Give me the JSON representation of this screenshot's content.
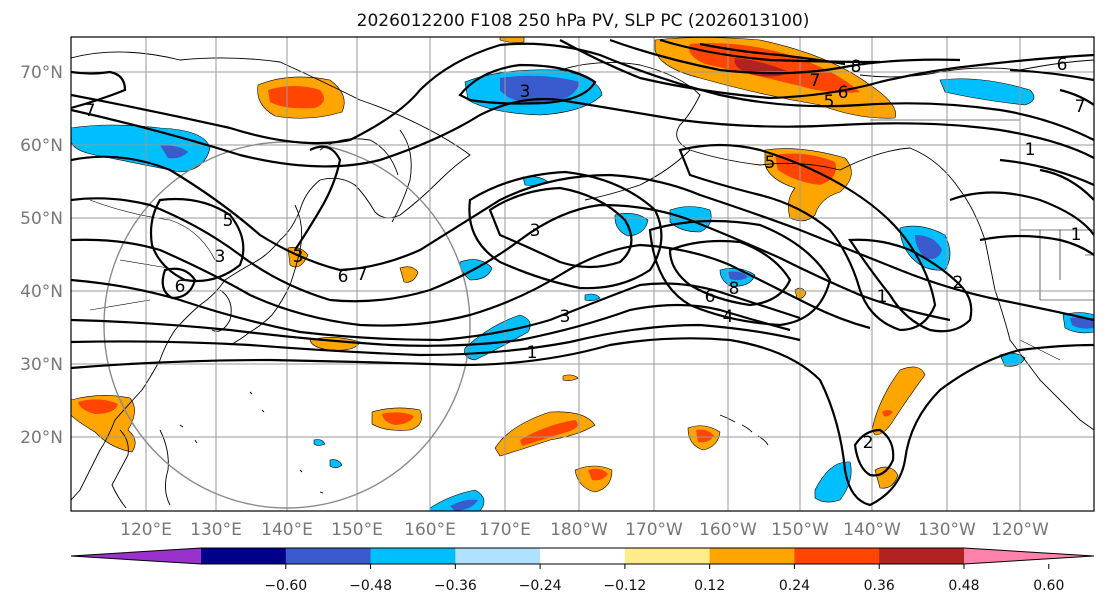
{
  "title": "2026012200 F108 250 hPa PV, SLP PC (2026013100)",
  "lat_labels": [
    "70°N",
    "60°N",
    "50°N",
    "40°N",
    "30°N",
    "20°N"
  ],
  "lon_labels": [
    "120°E",
    "130°E",
    "140°E",
    "150°E",
    "160°E",
    "170°E",
    "180°W",
    "170°W",
    "160°W",
    "150°W",
    "140°W",
    "130°W",
    "120°W"
  ],
  "colorbar": {
    "ticks": [
      "−0.60",
      "−0.48",
      "−0.36",
      "−0.24",
      "−0.12",
      "0.12",
      "0.24",
      "0.36",
      "0.48",
      "0.60"
    ],
    "colors": [
      "#9932cc",
      "#00008b",
      "#3a5bcd",
      "#00bfff",
      "#b0e2ff",
      "#ffffff",
      "#ffec8b",
      "#ffa500",
      "#ff4500",
      "#b22222",
      "#ff82ab"
    ]
  },
  "contour_labels": [
    "7",
    "3",
    "8",
    "7",
    "6",
    "5",
    "6",
    "7",
    "5",
    "3",
    "6",
    "3",
    "1",
    "7",
    "6",
    "8",
    "4",
    "1",
    "2",
    "1",
    "1",
    "2",
    "5",
    "6",
    "3",
    "3"
  ]
}
